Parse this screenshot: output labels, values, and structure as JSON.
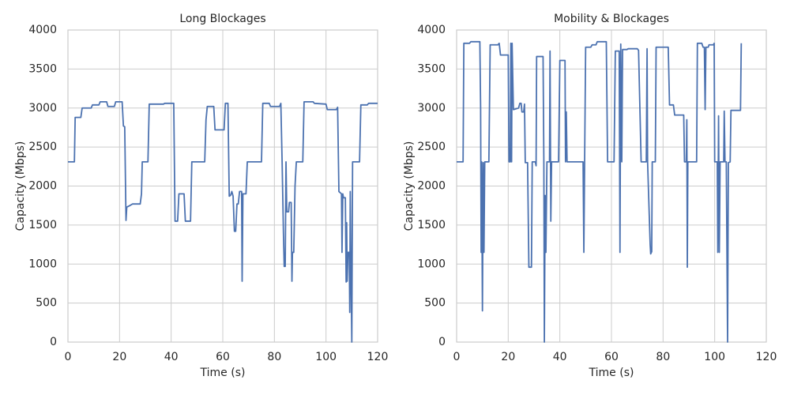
{
  "chart_data": [
    {
      "type": "line",
      "title": "Long Blockages",
      "xlabel": "Time (s)",
      "ylabel": "Capacity (Mbps)",
      "color": "#4c72b0",
      "grid": true,
      "xlim": [
        0,
        120
      ],
      "xticks": [
        0,
        20,
        40,
        60,
        80,
        100,
        120
      ],
      "ylim": [
        0,
        4000
      ],
      "yticks": [
        0,
        500,
        1000,
        1500,
        2000,
        2500,
        3000,
        3500,
        4000
      ],
      "x": [
        0,
        2.5,
        2.8,
        5,
        5.5,
        9,
        9.5,
        12,
        12.5,
        15,
        15.5,
        18,
        18.5,
        21,
        21.5,
        22,
        22.5,
        22.8,
        24,
        25,
        28,
        28.5,
        28.8,
        31,
        31.5,
        37,
        37.5,
        41,
        41.5,
        42.5,
        43,
        45,
        45.5,
        47.5,
        48,
        53,
        53.5,
        54,
        56.5,
        57,
        60.5,
        61,
        62,
        62.5,
        63,
        63.5,
        64,
        64.5,
        65,
        65.5,
        66,
        66.5,
        67.3,
        67.5,
        67.8,
        69,
        69.5,
        75,
        75.5,
        78,
        78.5,
        82,
        82.5,
        83,
        83.5,
        83.8,
        84.2,
        84.5,
        84.8,
        85.5,
        85.8,
        86.5,
        86.8,
        87,
        87.5,
        88,
        88.5,
        91,
        91.5,
        95,
        95.5,
        100,
        100.5,
        104,
        104.5,
        105,
        106,
        106.2,
        106.5,
        106.8,
        107.5,
        107.8,
        108,
        108.2,
        108.5,
        109,
        109.2,
        109.4,
        109.6,
        110,
        110.3,
        113,
        113.5,
        116,
        116.5,
        120
      ],
      "values": [
        2310,
        2310,
        2880,
        2880,
        3000,
        3000,
        3040,
        3040,
        3080,
        3080,
        3020,
        3020,
        3080,
        3080,
        2770,
        2760,
        1560,
        1730,
        1750,
        1770,
        1770,
        1900,
        2310,
        2310,
        3050,
        3050,
        3060,
        3060,
        1550,
        1550,
        1900,
        1900,
        1550,
        1550,
        2310,
        2310,
        2850,
        3020,
        3020,
        2720,
        2720,
        3060,
        3060,
        1870,
        1880,
        1930,
        1870,
        1420,
        1420,
        1770,
        1770,
        1930,
        1930,
        780,
        1900,
        1900,
        2310,
        2310,
        3060,
        3060,
        3020,
        3020,
        3060,
        2300,
        1400,
        970,
        970,
        2310,
        1670,
        1670,
        1790,
        1790,
        780,
        1150,
        1150,
        2000,
        2310,
        2310,
        3080,
        3080,
        3060,
        3050,
        2980,
        2980,
        3010,
        1930,
        1900,
        1150,
        1900,
        1850,
        1850,
        770,
        1530,
        780,
        1150,
        1150,
        380,
        1930,
        1150,
        0,
        2310,
        2310,
        3040,
        3040,
        3060,
        3060
      ]
    },
    {
      "type": "line",
      "title": "Mobility & Blockages",
      "xlabel": "Time (s)",
      "ylabel": "Capacity (Mbps)",
      "color": "#4c72b0",
      "grid": true,
      "xlim": [
        0,
        120
      ],
      "xticks": [
        0,
        20,
        40,
        60,
        80,
        100,
        120
      ],
      "ylim": [
        0,
        4000
      ],
      "yticks": [
        0,
        500,
        1000,
        1500,
        2000,
        2500,
        3000,
        3500,
        4000
      ],
      "x": [
        0,
        2.5,
        2.8,
        5,
        5.5,
        9,
        9.3,
        9.5,
        9.7,
        10,
        10.3,
        10.6,
        10.9,
        12.5,
        13,
        16,
        16.5,
        17,
        20,
        20.3,
        20.8,
        21,
        21.3,
        21.5,
        22,
        24,
        24.5,
        25,
        25.3,
        26,
        26.3,
        26.6,
        27.5,
        28,
        29,
        29.3,
        30.5,
        30.8,
        31,
        33.5,
        33.8,
        34,
        34.3,
        34.6,
        35,
        36,
        36.2,
        36.5,
        36.8,
        39.5,
        40,
        42,
        42.2,
        42.5,
        42.8,
        49,
        49.3,
        49.6,
        50,
        52,
        52.5,
        54,
        54.5,
        58,
        58.5,
        61,
        61.5,
        63,
        63.3,
        63.6,
        64,
        64.3,
        66,
        66.5,
        70,
        70.5,
        71.5,
        73.5,
        73.8,
        74,
        75,
        75.2,
        75.6,
        75.8,
        77,
        77.3,
        82,
        82.5,
        84,
        84.5,
        88,
        88.3,
        89,
        89.2,
        89.4,
        89.6,
        93,
        93.3,
        95,
        95.5,
        96,
        96.3,
        96.6,
        97.5,
        97.8,
        99.5,
        99.8,
        100,
        101,
        101.2,
        101.5,
        101.8,
        102.1,
        103.5,
        103.7,
        104,
        104.5,
        105,
        105.3,
        106,
        106.3,
        110,
        110.3
      ],
      "values": [
        2310,
        2310,
        3830,
        3830,
        3850,
        3850,
        3000,
        1150,
        2310,
        400,
        2300,
        1150,
        2310,
        2310,
        3810,
        3810,
        3830,
        3680,
        3680,
        2310,
        2310,
        3830,
        2310,
        3830,
        2980,
        3000,
        3060,
        3060,
        2950,
        2950,
        3050,
        2300,
        2300,
        960,
        960,
        2310,
        2310,
        2260,
        3660,
        3660,
        2310,
        0,
        1880,
        1150,
        2310,
        2310,
        3730,
        1550,
        2310,
        2310,
        3610,
        3610,
        2310,
        2950,
        2310,
        2310,
        1150,
        2310,
        3780,
        3780,
        3810,
        3810,
        3850,
        3850,
        2310,
        2310,
        3730,
        3730,
        1150,
        3820,
        2310,
        3750,
        3750,
        3760,
        3760,
        3740,
        2310,
        2310,
        3760,
        2310,
        1250,
        1130,
        1160,
        2310,
        2310,
        3780,
        3780,
        3040,
        3040,
        2910,
        2910,
        2310,
        2310,
        2850,
        960,
        2310,
        2310,
        3830,
        3830,
        3780,
        3780,
        2980,
        3780,
        3780,
        3810,
        3810,
        3830,
        2310,
        2310,
        1150,
        2900,
        1150,
        2310,
        2310,
        2960,
        2310,
        2310,
        0,
        2300,
        2310,
        2970,
        2970,
        3830
      ]
    }
  ]
}
